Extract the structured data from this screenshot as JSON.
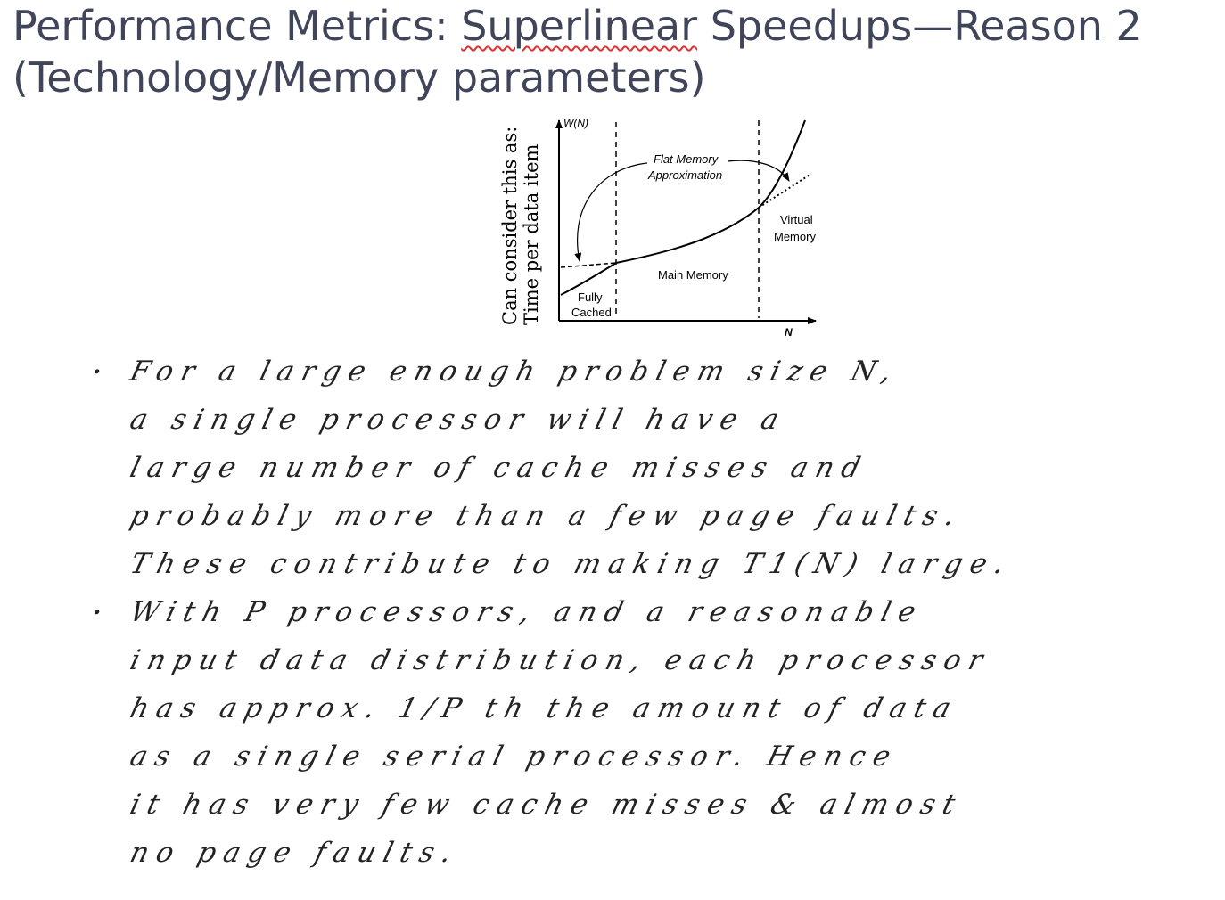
{
  "title": {
    "part1": "Performance Metrics: ",
    "underlined": "Superlinear",
    "part2": " Speedups—Reason 2",
    "line2": "(Technology/Memory parameters)"
  },
  "side_label": {
    "line1": "Can consider this as:",
    "line2": "Time per data item"
  },
  "graph": {
    "y_axis_label": "W(N)",
    "x_axis_label": "N",
    "labels": {
      "flat_memory_1": "Flat Memory",
      "flat_memory_2": "Approximation",
      "virtual_1": "Virtual",
      "virtual_2": "Memory",
      "main_memory": "Main Memory",
      "fully": "Fully",
      "cached": "Cached"
    }
  },
  "handwritten_notes": [
    {
      "text": "For a large enough problem size N,",
      "bullet": true
    },
    {
      "text": "a single processor will have a",
      "bullet": false
    },
    {
      "text": "large number of cache misses and",
      "bullet": false
    },
    {
      "text": "probably more than a few page faults.",
      "bullet": false
    },
    {
      "text": "These contribute to making T1(N) large.",
      "bullet": false
    },
    {
      "text": "With P processors, and a reasonable",
      "bullet": true
    },
    {
      "text": "input data distribution, each processor",
      "bullet": false
    },
    {
      "text": "has approx. 1/P th the amount of data",
      "bullet": false
    },
    {
      "text": "as a single serial processor. Hence",
      "bullet": false
    },
    {
      "text": "it has very few cache misses & almost",
      "bullet": false
    },
    {
      "text": "no page faults.",
      "bullet": false
    }
  ]
}
